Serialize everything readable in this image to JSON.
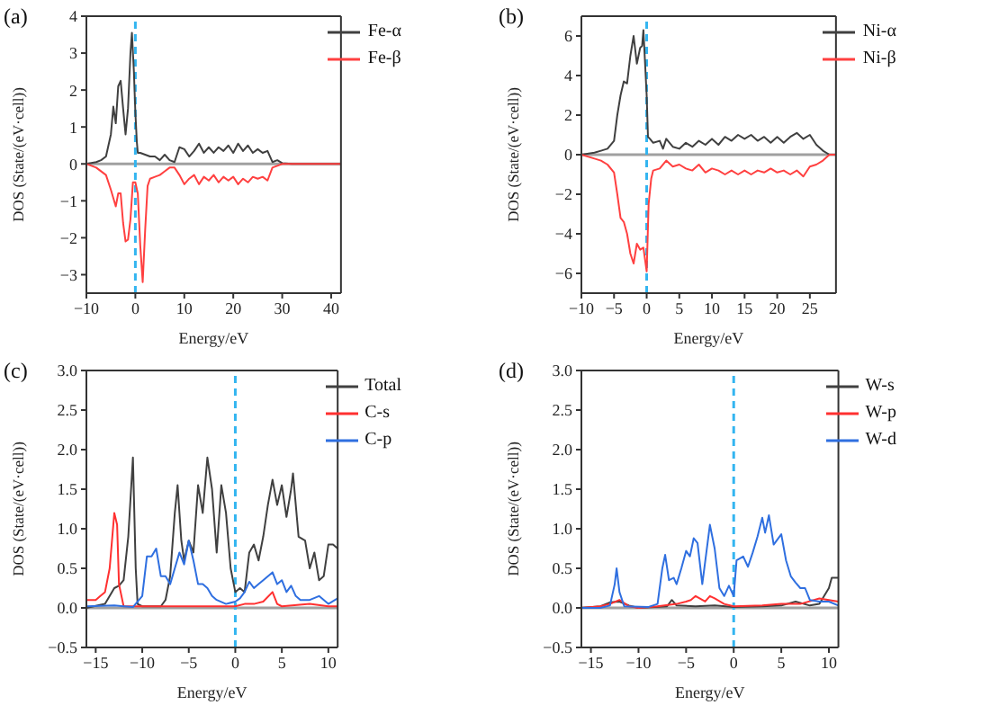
{
  "chart_data": [
    {
      "type": "line",
      "title": "(a)",
      "xlabel": "Energy/eV",
      "ylabel": "DOS (State/(eV·cell))",
      "xlim": [
        -10,
        42
      ],
      "xticks": [
        {
          "value": -10,
          "label": "−10"
        },
        0,
        10,
        20,
        30,
        40
      ],
      "ylim": [
        -3.5,
        4
      ],
      "yticks": [
        {
          "value": -3,
          "label": "−3"
        },
        {
          "value": -2,
          "label": "−2"
        },
        {
          "value": -1,
          "label": "−1"
        },
        0,
        1,
        2,
        3,
        4
      ],
      "legend": "top right",
      "grid": false,
      "marker": "none",
      "line_style": "solid",
      "ref_lines": [
        {
          "axis": "y",
          "value": 0,
          "color": "#a0a0a0",
          "line_style": "solid"
        },
        {
          "axis": "x",
          "value": 0,
          "color": "#33b5f0",
          "line_style": "dashed"
        }
      ],
      "series": [
        {
          "name": "Fe-α",
          "color": "#404040",
          "x": [
            -10,
            -8,
            -7,
            -6,
            -5,
            -4.5,
            -4,
            -3.5,
            -3,
            -2.5,
            -2,
            -1.5,
            -1,
            -0.7,
            -0.3,
            0,
            0.3,
            0.5,
            1,
            2,
            3,
            4,
            5,
            6,
            7,
            8,
            9,
            10,
            11,
            12,
            13,
            14,
            15,
            16,
            17,
            18,
            19,
            20,
            21,
            22,
            23,
            24,
            25,
            26,
            27,
            28,
            29,
            30,
            32,
            42
          ],
          "values": [
            0,
            0.05,
            0.1,
            0.2,
            0.8,
            1.55,
            1.1,
            2.1,
            2.25,
            1.5,
            0.8,
            1.5,
            3.0,
            3.55,
            2.5,
            1.4,
            0.6,
            0.3,
            0.3,
            0.25,
            0.2,
            0.2,
            0.1,
            0.25,
            0.1,
            0.05,
            0.45,
            0.4,
            0.2,
            0.35,
            0.55,
            0.3,
            0.45,
            0.3,
            0.45,
            0.35,
            0.5,
            0.3,
            0.55,
            0.35,
            0.5,
            0.3,
            0.4,
            0.3,
            0.35,
            0.05,
            0.1,
            0.02,
            0,
            0
          ]
        },
        {
          "name": "Fe-β",
          "color": "#ff4040",
          "x": [
            -10,
            -8,
            -6,
            -5,
            -4,
            -3.5,
            -3,
            -2.5,
            -2,
            -1.5,
            -1,
            -0.5,
            0,
            0.5,
            1,
            1.5,
            2,
            2.5,
            3,
            4,
            5,
            6,
            7,
            8,
            9,
            10,
            11,
            12,
            13,
            14,
            15,
            16,
            17,
            18,
            19,
            20,
            21,
            22,
            23,
            24,
            25,
            26,
            27,
            28,
            29,
            30,
            42
          ],
          "values": [
            0,
            -0.1,
            -0.3,
            -0.7,
            -1.15,
            -0.8,
            -0.8,
            -1.6,
            -2.1,
            -2.05,
            -1.5,
            -0.5,
            -0.5,
            -0.8,
            -2.2,
            -3.2,
            -1.8,
            -0.6,
            -0.4,
            -0.35,
            -0.3,
            -0.2,
            -0.1,
            -0.1,
            -0.3,
            -0.55,
            -0.4,
            -0.3,
            -0.55,
            -0.35,
            -0.45,
            -0.3,
            -0.5,
            -0.35,
            -0.45,
            -0.35,
            -0.55,
            -0.4,
            -0.5,
            -0.35,
            -0.4,
            -0.35,
            -0.45,
            -0.1,
            -0.05,
            0,
            0
          ]
        }
      ]
    },
    {
      "type": "line",
      "title": "(b)",
      "xlabel": "Energy/eV",
      "ylabel": "DOS (State/(eV·cell))",
      "xlim": [
        -10,
        29
      ],
      "xticks": [
        {
          "value": -10,
          "label": "−10"
        },
        {
          "value": -5,
          "label": "−5"
        },
        0,
        5,
        10,
        15,
        20,
        25
      ],
      "ylim": [
        -7,
        7
      ],
      "yticks": [
        {
          "value": -6,
          "label": "−6"
        },
        {
          "value": -4,
          "label": "−4"
        },
        {
          "value": -2,
          "label": "−2"
        },
        0,
        2,
        4,
        6
      ],
      "legend": "top right",
      "grid": false,
      "marker": "none",
      "line_style": "solid",
      "ref_lines": [
        {
          "axis": "y",
          "value": 0,
          "color": "#a0a0a0",
          "line_style": "solid"
        },
        {
          "axis": "x",
          "value": 0,
          "color": "#33b5f0",
          "line_style": "dashed"
        }
      ],
      "series": [
        {
          "name": "Ni-α",
          "color": "#404040",
          "x": [
            -10,
            -8,
            -7,
            -6,
            -5,
            -4.5,
            -4,
            -3.5,
            -3,
            -2.5,
            -2,
            -1.5,
            -1,
            -0.7,
            -0.5,
            0,
            0.2,
            0.5,
            1,
            2,
            2.5,
            3,
            4,
            5,
            6,
            7,
            8,
            9,
            10,
            11,
            12,
            13,
            14,
            15,
            16,
            17,
            18,
            19,
            20,
            21,
            22,
            23,
            24,
            25,
            26,
            27,
            28,
            29
          ],
          "values": [
            0,
            0.1,
            0.2,
            0.3,
            0.7,
            2.0,
            3.0,
            3.7,
            3.6,
            5.0,
            6.0,
            4.6,
            5.4,
            5.5,
            6.3,
            3.0,
            0.9,
            0.8,
            0.6,
            0.7,
            0.3,
            0.8,
            0.4,
            0.3,
            0.6,
            0.4,
            0.7,
            0.5,
            0.8,
            0.5,
            0.9,
            0.7,
            1.0,
            0.8,
            1.0,
            0.7,
            0.9,
            0.6,
            0.9,
            0.6,
            0.9,
            1.1,
            0.8,
            1.0,
            0.5,
            0.2,
            0,
            0
          ]
        },
        {
          "name": "Ni-β",
          "color": "#ff4040",
          "x": [
            -10,
            -8,
            -7,
            -6,
            -5,
            -4.5,
            -4,
            -3.5,
            -3,
            -2.5,
            -2,
            -1.5,
            -1,
            -0.5,
            0,
            0.3,
            0.7,
            1,
            2,
            3,
            4,
            5,
            6,
            7,
            8,
            9,
            10,
            11,
            12,
            13,
            14,
            15,
            16,
            17,
            18,
            19,
            20,
            21,
            22,
            23,
            24,
            25,
            26,
            27,
            28,
            29
          ],
          "values": [
            0,
            -0.2,
            -0.3,
            -0.5,
            -0.9,
            -2.0,
            -3.2,
            -3.4,
            -4.0,
            -5.0,
            -5.5,
            -4.5,
            -4.8,
            -4.7,
            -5.9,
            -2.5,
            -1.2,
            -0.8,
            -0.7,
            -0.3,
            -0.6,
            -0.5,
            -0.7,
            -0.8,
            -0.5,
            -0.9,
            -0.7,
            -0.8,
            -1.0,
            -0.8,
            -1.0,
            -0.8,
            -1.0,
            -0.8,
            -0.9,
            -0.7,
            -0.9,
            -0.8,
            -1.0,
            -0.8,
            -1.1,
            -0.6,
            -0.5,
            -0.3,
            0,
            0
          ]
        }
      ]
    },
    {
      "type": "line",
      "title": "(c)",
      "xlabel": "Energy/eV",
      "ylabel": "DOS (State/(eV·cell))",
      "xlim": [
        -16,
        11
      ],
      "xticks": [
        {
          "value": -15,
          "label": "−15"
        },
        {
          "value": -10,
          "label": "−10"
        },
        {
          "value": -5,
          "label": "−5"
        },
        0,
        5,
        10
      ],
      "ylim": [
        -0.5,
        3
      ],
      "yticks": [
        {
          "value": -0.5,
          "label": "−0.5"
        },
        {
          "value": 0,
          "label": "0.0"
        },
        0.5,
        {
          "value": 1,
          "label": "1.0"
        },
        1.5,
        {
          "value": 2,
          "label": "2.0"
        },
        2.5,
        {
          "value": 3,
          "label": "3.0"
        }
      ],
      "legend": "top right",
      "grid": false,
      "marker": "none",
      "line_style": "solid",
      "ref_lines": [
        {
          "axis": "y",
          "value": 0,
          "color": "#a0a0a0",
          "line_style": "solid"
        },
        {
          "axis": "x",
          "value": 0,
          "color": "#33b5f0",
          "line_style": "dashed"
        }
      ],
      "series": [
        {
          "name": "Total",
          "color": "#404040",
          "x": [
            -16,
            -14,
            -13.5,
            -13,
            -12.5,
            -12,
            -11.5,
            -11,
            -10.7,
            -10.5,
            -10,
            -9,
            -8,
            -7.5,
            -7,
            -6.5,
            -6.2,
            -5.8,
            -5.5,
            -5,
            -4.5,
            -4,
            -3.5,
            -3,
            -2.5,
            -2,
            -1.5,
            -1,
            -0.5,
            0,
            0.5,
            1,
            1.5,
            2,
            2.5,
            3,
            3.5,
            4,
            4.5,
            5,
            5.5,
            6,
            6.2,
            6.8,
            7.5,
            8,
            8.5,
            9,
            9.5,
            10,
            10.5,
            11
          ],
          "values": [
            0,
            0.05,
            0.15,
            0.25,
            0.28,
            0.35,
            0.9,
            1.9,
            0.5,
            0.05,
            0.02,
            0.02,
            0.02,
            0.1,
            0.4,
            1.2,
            1.55,
            0.85,
            0.6,
            0.85,
            0.7,
            1.55,
            1.2,
            1.9,
            1.5,
            0.7,
            1.55,
            1.2,
            0.5,
            0.2,
            0.25,
            0.2,
            0.7,
            0.8,
            0.6,
            0.9,
            1.3,
            1.62,
            1.3,
            1.55,
            1.15,
            1.5,
            1.7,
            0.9,
            0.85,
            0.5,
            0.7,
            0.35,
            0.4,
            0.8,
            0.8,
            0.75
          ]
        },
        {
          "name": "C-s",
          "color": "#ff3030",
          "x": [
            -16,
            -15,
            -14.5,
            -14,
            -13.5,
            -13,
            -12.7,
            -12.5,
            -12,
            -10,
            -6,
            0,
            1,
            2,
            3,
            4,
            4.5,
            5,
            8,
            10,
            11
          ],
          "values": [
            0.1,
            0.1,
            0.15,
            0.2,
            0.5,
            1.2,
            1.05,
            0.3,
            0.02,
            0.02,
            0.02,
            0.02,
            0.05,
            0.05,
            0.08,
            0.2,
            0.05,
            0.02,
            0.05,
            0.02,
            0.02
          ]
        },
        {
          "name": "C-p",
          "color": "#2f6fe0",
          "x": [
            -16,
            -13,
            -12,
            -11,
            -10,
            -9.5,
            -9,
            -8.5,
            -8,
            -7.5,
            -7,
            -6.5,
            -6,
            -5.5,
            -5,
            -4.5,
            -4,
            -3.5,
            -3,
            -2.5,
            -2,
            -1,
            0,
            0.5,
            1,
            1.5,
            2,
            2.5,
            3,
            4,
            4.5,
            5,
            5.5,
            6,
            6.5,
            7,
            8,
            9,
            10,
            11
          ],
          "values": [
            0.02,
            0.03,
            0.02,
            0.01,
            0.15,
            0.65,
            0.65,
            0.75,
            0.4,
            0.4,
            0.3,
            0.5,
            0.7,
            0.55,
            0.85,
            0.6,
            0.3,
            0.3,
            0.25,
            0.15,
            0.1,
            0.05,
            0.08,
            0.12,
            0.2,
            0.33,
            0.25,
            0.3,
            0.35,
            0.45,
            0.3,
            0.35,
            0.2,
            0.28,
            0.15,
            0.1,
            0.1,
            0.15,
            0.05,
            0.12
          ]
        }
      ]
    },
    {
      "type": "line",
      "title": "(d)",
      "xlabel": "Energy/eV",
      "ylabel": "DOS (State/(eV·cell))",
      "xlim": [
        -16,
        11
      ],
      "xticks": [
        {
          "value": -15,
          "label": "−15"
        },
        {
          "value": -10,
          "label": "−10"
        },
        {
          "value": -5,
          "label": "−5"
        },
        0,
        5,
        10
      ],
      "ylim": [
        -0.5,
        3
      ],
      "yticks": [
        {
          "value": -0.5,
          "label": "−0.5"
        },
        {
          "value": 0,
          "label": "0.0"
        },
        0.5,
        {
          "value": 1,
          "label": "1.0"
        },
        1.5,
        {
          "value": 2,
          "label": "2.0"
        },
        2.5,
        {
          "value": 3,
          "label": "3.0"
        }
      ],
      "legend": "top right",
      "grid": false,
      "marker": "none",
      "line_style": "solid",
      "ref_lines": [
        {
          "axis": "y",
          "value": 0,
          "color": "#a0a0a0",
          "line_style": "solid"
        },
        {
          "axis": "x",
          "value": 0,
          "color": "#33b5f0",
          "line_style": "dashed"
        }
      ],
      "series": [
        {
          "name": "W-s",
          "color": "#404040",
          "x": [
            -16,
            -14,
            -13,
            -12,
            -11,
            -10,
            -7,
            -6.5,
            -6,
            -4,
            -2,
            0,
            3,
            5,
            6.5,
            8,
            9,
            9.5,
            10,
            10.3,
            11
          ],
          "values": [
            0,
            0.02,
            0.07,
            0.08,
            0.03,
            0,
            0.02,
            0.1,
            0.03,
            0.02,
            0.03,
            0.01,
            0.02,
            0.03,
            0.08,
            0.03,
            0.05,
            0.15,
            0.25,
            0.38,
            0.38
          ]
        },
        {
          "name": "W-p",
          "color": "#ff3030",
          "x": [
            -16,
            -14,
            -13,
            -12,
            -11,
            -10,
            -8,
            -6,
            -5,
            -4.5,
            -4,
            -3,
            -2.5,
            -2,
            -1,
            0,
            3,
            5,
            7,
            9,
            10,
            11
          ],
          "values": [
            0,
            0.02,
            0.05,
            0.1,
            0.02,
            0,
            0.02,
            0.05,
            0.08,
            0.1,
            0.15,
            0.08,
            0.15,
            0.12,
            0.05,
            0.02,
            0.03,
            0.05,
            0.05,
            0.12,
            0.1,
            0.08
          ]
        },
        {
          "name": "W-d",
          "color": "#2f6fe0",
          "x": [
            -16,
            -14,
            -13,
            -12.5,
            -12.3,
            -12,
            -11.5,
            -9,
            -8,
            -7.5,
            -7.2,
            -6.8,
            -6.3,
            -6,
            -5.5,
            -5,
            -4.6,
            -4.2,
            -3.8,
            -3.3,
            -2.5,
            -2,
            -1.5,
            -1,
            -0.5,
            0,
            0.3,
            1,
            1.5,
            2,
            2.5,
            3,
            3.3,
            3.7,
            4.2,
            5,
            5.5,
            6,
            6.5,
            7,
            7.5,
            8,
            9,
            10,
            11
          ],
          "values": [
            0,
            0,
            0.03,
            0.3,
            0.5,
            0.2,
            0.02,
            0.01,
            0.05,
            0.5,
            0.67,
            0.35,
            0.38,
            0.3,
            0.5,
            0.72,
            0.65,
            0.88,
            0.82,
            0.3,
            1.05,
            0.75,
            0.25,
            0.15,
            0.28,
            0.15,
            0.6,
            0.65,
            0.52,
            0.7,
            0.9,
            1.14,
            0.95,
            1.17,
            0.8,
            0.93,
            0.6,
            0.4,
            0.32,
            0.25,
            0.25,
            0.1,
            0.08,
            0.08,
            0.03
          ]
        }
      ]
    }
  ]
}
